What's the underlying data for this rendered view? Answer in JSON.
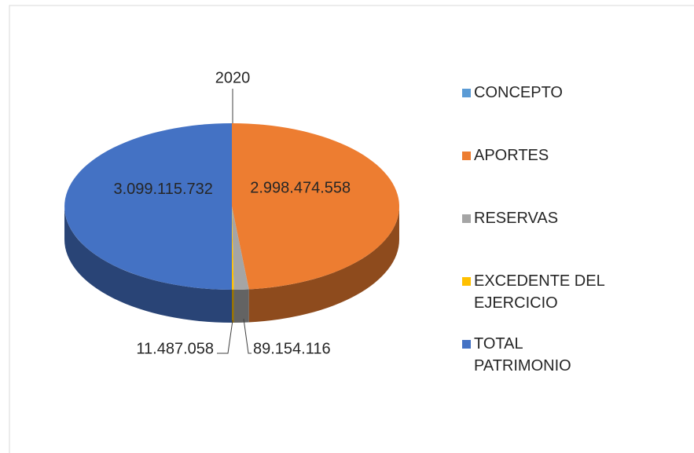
{
  "chart_data": {
    "type": "pie",
    "categories": [
      "CONCEPTO",
      "APORTES",
      "RESERVAS",
      "EXCEDENTE DEL EJERCICIO",
      "TOTAL PATRIMONIO"
    ],
    "values": [
      2020,
      2998474558,
      89154116,
      11487058,
      3099115732
    ],
    "value_labels": [
      "2020",
      "2.998.474.558",
      "89.154.116",
      "11.487.058",
      "3.099.115.732"
    ],
    "colors": [
      "#5b9bd5",
      "#ed7d31",
      "#a5a5a5",
      "#ffc000",
      "#4472c4"
    ],
    "legend": "right"
  }
}
